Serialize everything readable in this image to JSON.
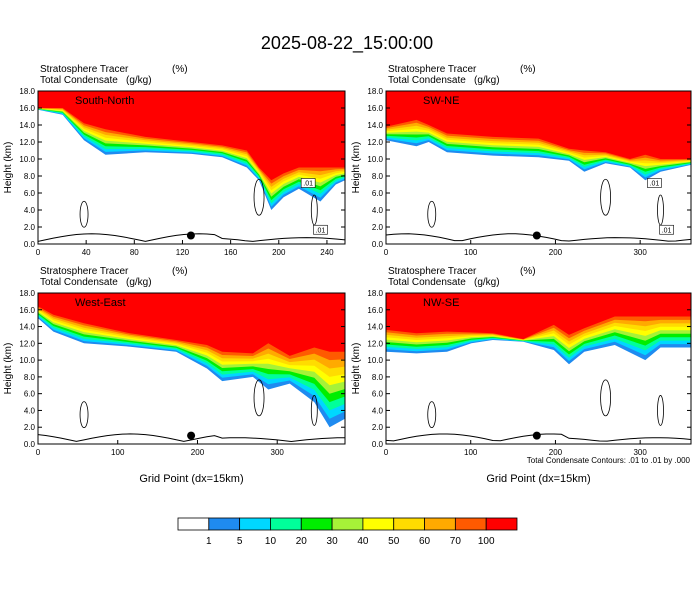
{
  "title": "2025-08-22_15:00:00",
  "colors": {
    "white": "#ffffff",
    "c1": "#1f8bf0",
    "c2": "#00d7ff",
    "c3": "#00ff9a",
    "c4": "#00ee00",
    "c5": "#a6f238",
    "c6": "#ffff00",
    "c7": "#ffdc00",
    "c8": "#ffaa00",
    "c9": "#ff5a00",
    "c10": "#ff0000"
  },
  "colorbar": {
    "labels": [
      "1",
      "5",
      "10",
      "20",
      "30",
      "40",
      "50",
      "60",
      "70",
      "100"
    ]
  },
  "contour_note": "Total Condensate Contours: .01 to .01 by .000",
  "chart_data": [
    {
      "type": "heatmap",
      "variables": [
        "Stratosphere Tracer",
        "(%)",
        "Total Condensate",
        "(g/kg)"
      ],
      "label": "South-North",
      "ylabel": "Height (km)",
      "xlabel": "",
      "xlim": [
        0,
        255
      ],
      "xticks": [
        0,
        40,
        80,
        120,
        160,
        200,
        240
      ],
      "ylim": [
        0,
        18
      ],
      "yticks": [
        "0.0",
        "2.0",
        "4.0",
        "6.0",
        "8.0",
        "10.0",
        "12.0",
        "14.0",
        "16.0",
        "18.0"
      ],
      "contour_labels": [
        ".01",
        ".01"
      ],
      "marker_x": 127
    },
    {
      "type": "heatmap",
      "variables": [
        "Stratosphere Tracer",
        "(%)",
        "Total Condensate",
        "(g/kg)"
      ],
      "label": "SW-NE",
      "ylabel": "Height (km)",
      "xlabel": "",
      "xlim": [
        0,
        360
      ],
      "xticks": [
        0,
        100,
        200,
        300
      ],
      "ylim": [
        0,
        18
      ],
      "yticks": [
        "0.0",
        "2.0",
        "4.0",
        "6.0",
        "8.0",
        "10.0",
        "12.0",
        "14.0",
        "16.0",
        "18.0"
      ],
      "contour_labels": [
        ".01",
        ".01"
      ],
      "marker_x": 178
    },
    {
      "type": "heatmap",
      "variables": [
        "Stratosphere Tracer",
        "(%)",
        "Total Condensate",
        "(g/kg)"
      ],
      "label": "West-East",
      "ylabel": "Height (km)",
      "xlabel": "Grid Point (dx=15km)",
      "xlim": [
        0,
        385
      ],
      "xticks": [
        0,
        100,
        200,
        300
      ],
      "ylim": [
        0,
        18
      ],
      "yticks": [
        "0.0",
        "2.0",
        "4.0",
        "6.0",
        "8.0",
        "10.0",
        "12.0",
        "14.0",
        "16.0",
        "18.0"
      ],
      "contour_labels": [],
      "marker_x": 192
    },
    {
      "type": "heatmap",
      "variables": [
        "Stratosphere Tracer",
        "(%)",
        "Total Condensate",
        "(g/kg)"
      ],
      "label": "NW-SE",
      "ylabel": "Height (km)",
      "xlabel": "Grid Point (dx=15km)",
      "xlim": [
        0,
        360
      ],
      "xticks": [
        0,
        100,
        200,
        300
      ],
      "ylim": [
        0,
        18
      ],
      "yticks": [
        "0.0",
        "2.0",
        "4.0",
        "6.0",
        "8.0",
        "10.0",
        "12.0",
        "14.0",
        "16.0",
        "18.0"
      ],
      "contour_labels": [],
      "marker_x": 178
    }
  ]
}
